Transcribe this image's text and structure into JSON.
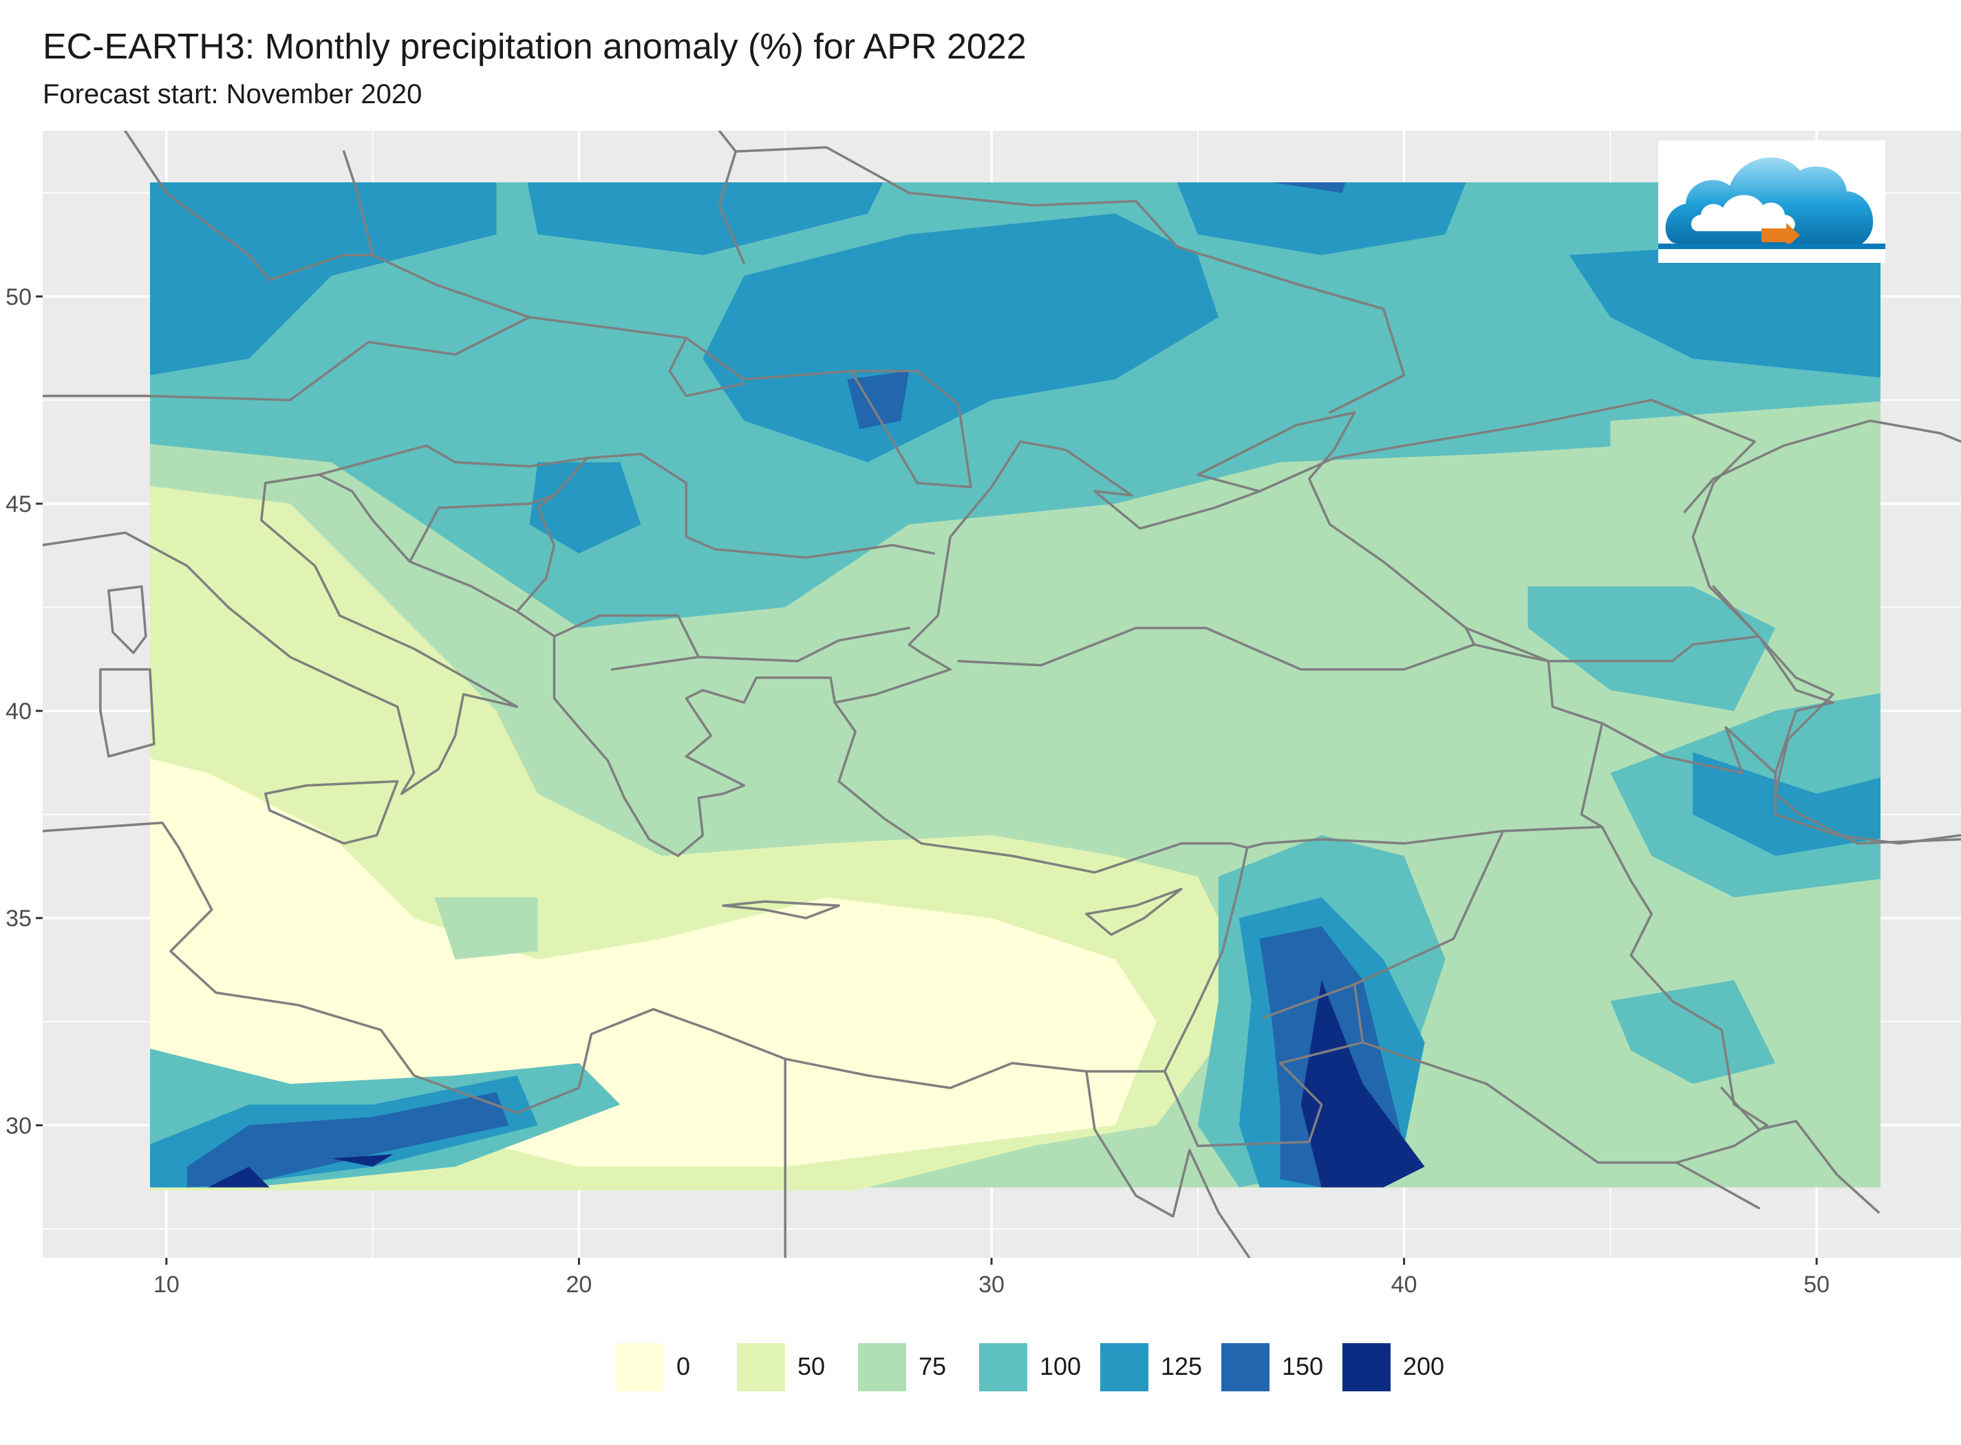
{
  "title": "EC-EARTH3: Monthly precipitation anomaly (%) for APR 2022",
  "subtitle": "Forecast start: November 2020",
  "colors": {
    "panel_background": "#ebebeb",
    "grid_line": "#ffffff",
    "border_line": "#7f7f7f",
    "axis_text": "#4d4d4d"
  },
  "map": {
    "x_ticks": [
      "10",
      "20",
      "30",
      "40",
      "50"
    ],
    "y_ticks": [
      "50",
      "45",
      "40",
      "35",
      "30"
    ],
    "x_range": [
      7.0,
      53.5
    ],
    "y_range": [
      26.8,
      54.0
    ],
    "data_extent": {
      "lon": [
        9.5,
        51.7
      ],
      "lat": [
        28.5,
        53.0
      ]
    },
    "legend": [
      {
        "label": "0",
        "color": "#ffffd9"
      },
      {
        "label": "50",
        "color": "#e1f3b3"
      },
      {
        "label": "75",
        "color": "#b0dfb6"
      },
      {
        "label": "100",
        "color": "#5fc0c0"
      },
      {
        "label": "125",
        "color": "#2698c2"
      },
      {
        "label": "150",
        "color": "#2266ad"
      },
      {
        "label": "200",
        "color": "#0c2c84"
      }
    ]
  },
  "logo": {
    "icon": "cloud-logo-icon"
  }
}
